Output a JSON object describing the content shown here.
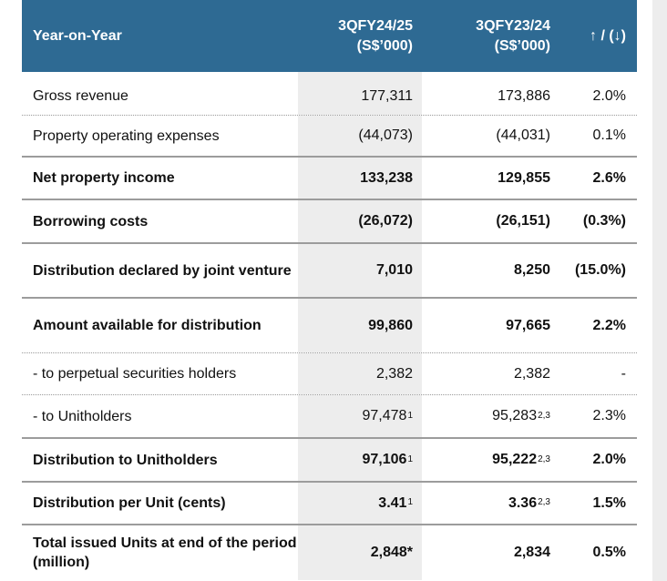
{
  "header": {
    "label": "Year-on-Year",
    "col_current_line1": "3QFY24/25",
    "col_current_line2": "(S$’000)",
    "col_prior_line1": "3QFY23/24",
    "col_prior_line2": "(S$’000)",
    "col_change": "↑ / (↓)"
  },
  "rows": [
    {
      "label": "Gross revenue",
      "current": "177,311",
      "current_note": "",
      "prior": "173,886",
      "prior_note": "",
      "change": "2.0%"
    },
    {
      "label": "Property operating expenses",
      "current": "(44,073)",
      "current_note": "",
      "prior": "(44,031)",
      "prior_note": "",
      "change": "0.1%"
    },
    {
      "label": "Net property income",
      "current": "133,238",
      "current_note": "",
      "prior": "129,855",
      "prior_note": "",
      "change": "2.6%"
    },
    {
      "label": "Borrowing costs",
      "current": "(26,072)",
      "current_note": "",
      "prior": "(26,151)",
      "prior_note": "",
      "change": "(0.3%)"
    },
    {
      "label": "Distribution declared by joint venture",
      "current": "7,010",
      "current_note": "",
      "prior": "8,250",
      "prior_note": "",
      "change": "(15.0%)"
    },
    {
      "label": "Amount available for distribution",
      "current": "99,860",
      "current_note": "",
      "prior": "97,665",
      "prior_note": "",
      "change": "2.2%"
    },
    {
      "label": "- to perpetual securities holders",
      "current": "2,382",
      "current_note": "",
      "prior": "2,382",
      "prior_note": "",
      "change": "-"
    },
    {
      "label": "- to Unitholders",
      "current": "97,478",
      "current_note": "1",
      "prior": "95,283",
      "prior_note": "2,3",
      "change": "2.3%"
    },
    {
      "label": "Distribution to Unitholders",
      "current": "97,106",
      "current_note": "1",
      "prior": "95,222",
      "prior_note": "2,3",
      "change": "2.0%"
    },
    {
      "label": "Distribution per Unit (cents)",
      "current": "3.41",
      "current_note": "1",
      "prior": "3.36",
      "prior_note": "2,3",
      "change": "1.5%"
    },
    {
      "label": "Total issued Units at end of the period (million)",
      "current": "2,848*",
      "current_note": "",
      "prior": "2,834",
      "prior_note": "",
      "change": "0.5%"
    }
  ]
}
